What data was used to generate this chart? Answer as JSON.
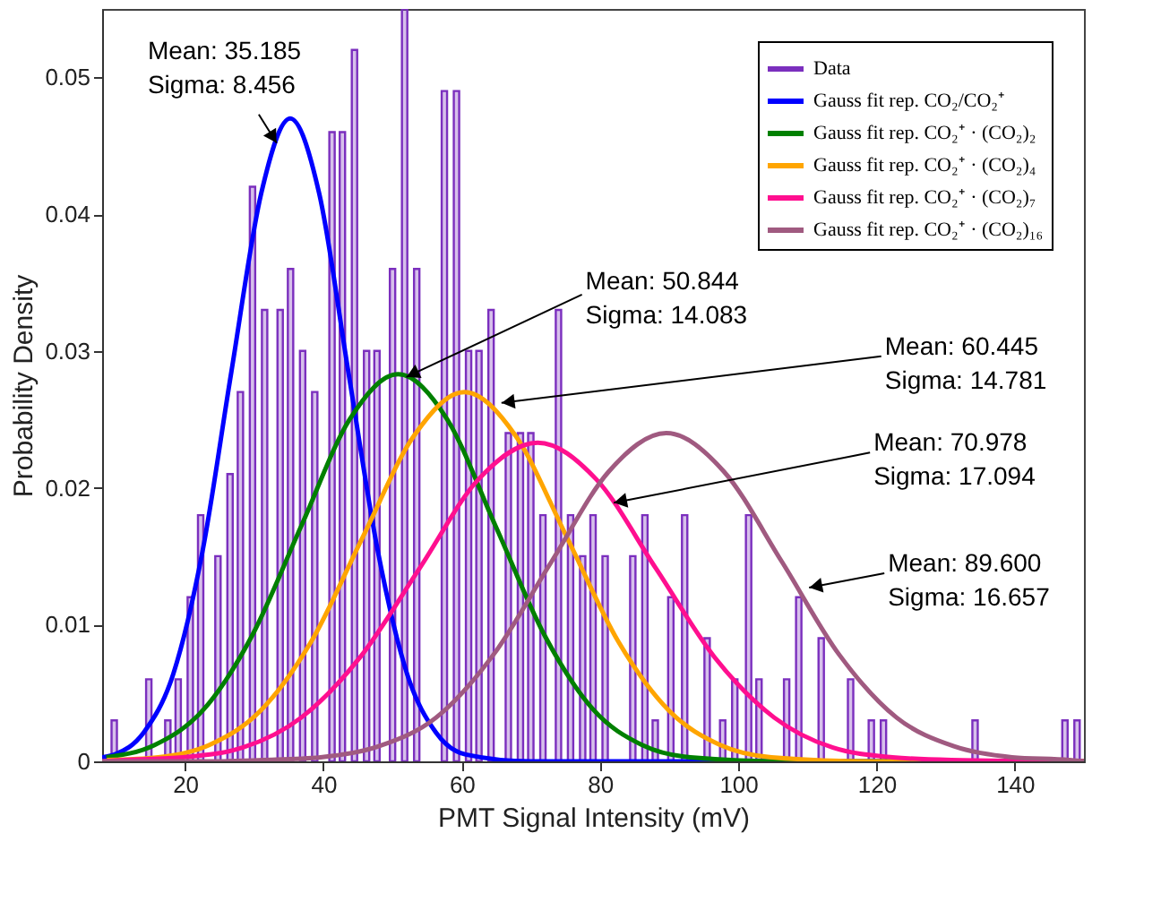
{
  "chart_data": {
    "type": "bar",
    "xlabel": "PMT Signal Intensity (mV)",
    "ylabel": "Probability Density",
    "xlim": [
      8,
      150
    ],
    "xticks": [
      20,
      40,
      60,
      80,
      100,
      120,
      140
    ],
    "ylim": [
      0,
      0.055
    ],
    "yticks": [
      0,
      0.01,
      0.02,
      0.03,
      0.04,
      0.05
    ],
    "legend": "top right",
    "grid": false,
    "annotations": [
      {
        "text": "Mean: 35.185\nSigma: 8.456",
        "x": 33.25,
        "y": 0.0452
      },
      {
        "text": "Mean: 50.844\nSigma: 14.083",
        "x": 52,
        "y": 0.0281
      },
      {
        "text": "Mean: 60.445\nSigma: 14.781",
        "x": 65.75,
        "y": 0.0262
      },
      {
        "text": "Mean: 70.978\nSigma: 17.094",
        "x": 82,
        "y": 0.0189
      },
      {
        "text": "Mean: 89.600\nSigma: 16.657",
        "x": 110.25,
        "y": 0.0127
      }
    ],
    "series": [
      {
        "name": "Data",
        "color": "#7b2fbe",
        "x": [
          9.75,
          14.75,
          17.5,
          19,
          20.75,
          22.25,
          24.75,
          26.5,
          28,
          29.75,
          31.5,
          33.75,
          35.25,
          37,
          38.75,
          41.25,
          42.75,
          44.5,
          46.25,
          47.75,
          50,
          51.75,
          53.5,
          57.5,
          59.25,
          61,
          62.5,
          64.25,
          66.75,
          68.5,
          70,
          71.75,
          74,
          75.75,
          77.5,
          79,
          80.75,
          84.75,
          86.5,
          88,
          90.25,
          92.25,
          95.5,
          97.75,
          99.5,
          101.5,
          103,
          107,
          108.75,
          112,
          116.25,
          119.25,
          121,
          134.25,
          147.25,
          149
        ],
        "values": [
          0.003,
          0.006,
          0.003,
          0.006,
          0.012,
          0.018,
          0.015,
          0.021,
          0.027,
          0.042,
          0.033,
          0.033,
          0.036,
          0.03,
          0.027,
          0.046,
          0.046,
          0.052,
          0.03,
          0.03,
          0.036,
          0.055,
          0.036,
          0.049,
          0.049,
          0.03,
          0.03,
          0.033,
          0.024,
          0.024,
          0.024,
          0.018,
          0.033,
          0.018,
          0.015,
          0.018,
          0.015,
          0.015,
          0.018,
          0.003,
          0.012,
          0.018,
          0.009,
          0.003,
          0.006,
          0.018,
          0.006,
          0.006,
          0.012,
          0.009,
          0.006,
          0.003,
          0.003,
          0.003,
          0.003,
          0.003
        ]
      },
      {
        "name": "Gauss fit rep. CO₂/CO₂⁺",
        "type": "line",
        "color": "#0000ff",
        "x": [
          8,
          9.8,
          14,
          18.3,
          22.5,
          26.7,
          31,
          35.2,
          39.4,
          43.6,
          47.9,
          52.1,
          56.3,
          60.6,
          70,
          150
        ],
        "values": [
          0.0003,
          0.0005,
          0.0021,
          0.0064,
          0.0153,
          0.0285,
          0.0415,
          0.047,
          0.0415,
          0.0285,
          0.0153,
          0.0064,
          0.0021,
          0.0005,
          0,
          0
        ]
      },
      {
        "name": "Gauss fit rep. CO₂⁺ · (CO₂)₂",
        "type": "line",
        "color": "#008000",
        "x": [
          8.6,
          15.6,
          22.7,
          29.7,
          36.8,
          43.8,
          50.8,
          57.9,
          64.9,
          72,
          79,
          86.1,
          93.1,
          107.2,
          150
        ],
        "values": [
          0.0003,
          0.0012,
          0.0038,
          0.0092,
          0.0172,
          0.025,
          0.0283,
          0.025,
          0.0172,
          0.0092,
          0.0038,
          0.0012,
          0.0003,
          0,
          0
        ]
      },
      {
        "name": "Gauss fit rep. CO₂⁺ · (CO₂)₄",
        "type": "line",
        "color": "#ffa500",
        "x": [
          8.7,
          16.1,
          23.5,
          30.9,
          38.3,
          45.7,
          53.1,
          60.4,
          67.8,
          75.2,
          82.6,
          90,
          97.4,
          104.8,
          119.6,
          150
        ],
        "values": [
          0.0001,
          0.0003,
          0.0012,
          0.0037,
          0.0088,
          0.0164,
          0.0238,
          0.027,
          0.0238,
          0.0164,
          0.0088,
          0.0037,
          0.0012,
          0.0003,
          0,
          0
        ]
      },
      {
        "name": "Gauss fit rep. CO₂⁺ · (CO₂)₇",
        "type": "line",
        "color": "#ff0f8f",
        "x": [
          8,
          11.1,
          19.7,
          28.3,
          36.8,
          45.3,
          53.9,
          62.4,
          71,
          79.5,
          88.1,
          96.6,
          105.2,
          113.7,
          122.3,
          130.8,
          150
        ],
        "values": [
          0,
          0.0001,
          0.0003,
          0.001,
          0.0032,
          0.0076,
          0.0141,
          0.0206,
          0.0233,
          0.0206,
          0.0141,
          0.0076,
          0.0032,
          0.001,
          0.0003,
          0.0001,
          0
        ]
      },
      {
        "name": "Gauss fit rep. CO₂⁺ · (CO₂)₁₆",
        "type": "line",
        "color": "#a05a80",
        "x": [
          8,
          23,
          31.3,
          39.6,
          48,
          56.3,
          64.6,
          73,
          81.3,
          89.6,
          97.9,
          106.3,
          114.6,
          122.9,
          131.2,
          139.6,
          147.9,
          150
        ],
        "values": [
          0,
          0,
          0.0001,
          0.0003,
          0.0011,
          0.0032,
          0.0078,
          0.0146,
          0.0212,
          0.024,
          0.0212,
          0.0146,
          0.0078,
          0.0032,
          0.0011,
          0.0003,
          0.0001,
          0
        ]
      }
    ]
  }
}
